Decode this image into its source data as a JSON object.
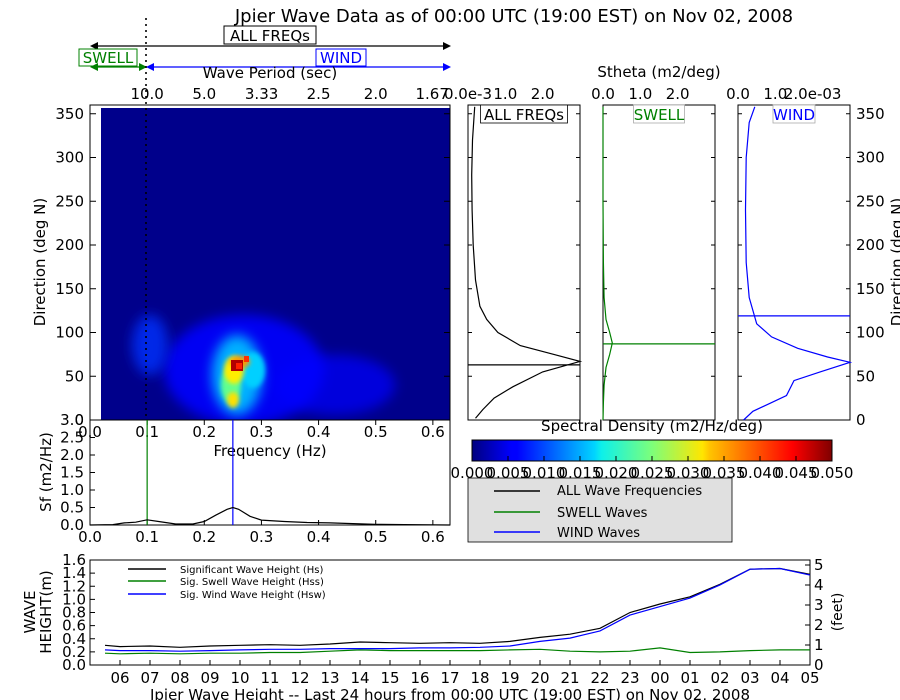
{
  "title": "Jpier Wave Data as of 00:00 UTC (19:00 EST) on Nov 02, 2008",
  "band_labels": {
    "all": "ALL FREQs",
    "wind": "WIND",
    "swell": "SWELL"
  },
  "colors": {
    "all": "#000000",
    "swell": "#008000",
    "wind": "#0000ff",
    "field": "#00008b"
  },
  "chart_data": [
    {
      "id": "directional-spectrum",
      "type": "heatmap",
      "xlabel": "Frequency (Hz)",
      "ylabel": "Direction (deg N)",
      "top_axis_label": "Wave Period (sec)",
      "top_tick_labels": [
        "10.0",
        "5.0",
        "3.33",
        "2.5",
        "2.0",
        "1.67"
      ],
      "xlim": [
        0.0,
        0.63
      ],
      "ylim": [
        0,
        360
      ],
      "xticks": [
        "0.0",
        "0.1",
        "0.2",
        "0.3",
        "0.4",
        "0.5",
        "0.6"
      ],
      "yticks": [
        "0",
        "50",
        "100",
        "150",
        "200",
        "250",
        "300",
        "350"
      ],
      "hotspots": [
        {
          "f": 0.255,
          "d": 62,
          "value": 0.05
        },
        {
          "f": 0.25,
          "d": 45,
          "value": 0.032
        },
        {
          "f": 0.27,
          "d": 68,
          "value": 0.022
        },
        {
          "f": 0.24,
          "d": 28,
          "value": 0.018
        },
        {
          "f": 0.1,
          "d": 90,
          "value": 0.006
        }
      ],
      "swell_cutoff_hz": 0.1,
      "peak_frequency_hz": 0.25
    },
    {
      "id": "stheta-all",
      "type": "line",
      "title": "ALL FREQs",
      "xtick_labels": [
        "0.0e-3",
        "1.0",
        "2.0"
      ],
      "xlim": [
        0,
        3.0
      ],
      "ylim": [
        0,
        360
      ],
      "peak_direction_deg": 63,
      "x": [
        0.18,
        0.12,
        0.1,
        0.11,
        0.14,
        0.2,
        0.32,
        0.5,
        0.8,
        1.4,
        2.3,
        3.0,
        2.0,
        1.2,
        0.7,
        0.4,
        0.2
      ],
      "y": [
        358,
        320,
        280,
        240,
        200,
        160,
        130,
        115,
        100,
        85,
        75,
        67,
        55,
        38,
        25,
        12,
        2
      ]
    },
    {
      "id": "stheta-swell",
      "type": "line",
      "title": "SWELL",
      "xtick_labels": [
        "0.0",
        "1.0",
        "2.0"
      ],
      "xlim": [
        0,
        3.0
      ],
      "ylim": [
        0,
        360
      ],
      "peak_direction_deg": 87,
      "x": [
        0.0,
        0.0,
        0.01,
        0.03,
        0.08,
        0.18,
        0.25,
        0.18,
        0.08,
        0.03,
        0.01,
        0.0
      ],
      "y": [
        358,
        250,
        180,
        140,
        115,
        100,
        88,
        75,
        60,
        40,
        20,
        0
      ]
    },
    {
      "id": "stheta-wind",
      "type": "line",
      "title": "WIND",
      "xtick_labels": [
        "0.0",
        "1.0",
        "2.0e-03"
      ],
      "xlim": [
        0,
        3.0
      ],
      "ylim": [
        0,
        360
      ],
      "peak_direction_deg": 119,
      "x": [
        0.45,
        0.3,
        0.22,
        0.2,
        0.22,
        0.3,
        0.5,
        0.9,
        1.6,
        2.4,
        3.0,
        2.2,
        1.5,
        1.3,
        0.8,
        0.4,
        0.15
      ],
      "y": [
        358,
        340,
        300,
        240,
        180,
        140,
        110,
        95,
        82,
        72,
        66,
        55,
        45,
        28,
        18,
        10,
        0
      ]
    },
    {
      "id": "frequency-spectrum",
      "type": "line",
      "ylabel": "Sf (m2/Hz)",
      "xlim": [
        0.0,
        0.63
      ],
      "ylim": [
        0.0,
        3.0
      ],
      "xticks": [
        "0.0",
        "0.1",
        "0.2",
        "0.3",
        "0.4",
        "0.5",
        "0.6"
      ],
      "yticks": [
        "0.0",
        "0.5",
        "1.0",
        "1.5",
        "2.0",
        "2.5",
        "3.0"
      ],
      "x": [
        0.0,
        0.04,
        0.06,
        0.08,
        0.1,
        0.12,
        0.15,
        0.18,
        0.2,
        0.22,
        0.24,
        0.25,
        0.26,
        0.28,
        0.3,
        0.34,
        0.38,
        0.42,
        0.46,
        0.5,
        0.55,
        0.63
      ],
      "y": [
        0.0,
        0.01,
        0.06,
        0.08,
        0.15,
        0.1,
        0.03,
        0.03,
        0.1,
        0.28,
        0.45,
        0.5,
        0.45,
        0.25,
        0.14,
        0.1,
        0.07,
        0.06,
        0.04,
        0.02,
        0.01,
        0.0
      ],
      "swell_cutoff_hz": 0.1,
      "peak_frequency_hz": 0.25
    },
    {
      "id": "colorbar",
      "type": "heatmap",
      "title": "Spectral Density (m2/Hz/deg)",
      "range": [
        0.0,
        0.05
      ],
      "tick_labels": [
        "0.000",
        "0.005",
        "0.010",
        "0.015",
        "0.020",
        "0.025",
        "0.030",
        "0.035",
        "0.040",
        "0.045",
        "0.050"
      ]
    },
    {
      "id": "wave-height-history",
      "type": "line",
      "ylabel": "WAVE HEIGHT(m)",
      "right_ylabel": "(feet)",
      "xlabel": "Jpier Wave Height -- Last 24 hours from 00:00 UTC (19:00 EST) on Nov 02, 2008",
      "categories": [
        "06",
        "07",
        "08",
        "09",
        "10",
        "11",
        "12",
        "13",
        "14",
        "15",
        "16",
        "17",
        "18",
        "19",
        "20",
        "21",
        "22",
        "23",
        "00",
        "01",
        "02",
        "03",
        "04",
        "05"
      ],
      "ylim": [
        0.0,
        1.6
      ],
      "yticks": [
        "0.0",
        "0.2",
        "0.4",
        "0.6",
        "0.8",
        "1.0",
        "1.2",
        "1.4",
        "1.6"
      ],
      "right_yticks": [
        "0",
        "1",
        "2",
        "3",
        "4",
        "5"
      ],
      "legend": [
        "Significant Wave Height (Hs)",
        "Sig. Swell Wave Height (Hss)",
        "Sig. Wind Wave Height (Hsw)"
      ],
      "series": [
        {
          "name": "Significant Wave Height (Hs)",
          "color": "#000000",
          "x": [
            5.5,
            6,
            7,
            8,
            9,
            10,
            11,
            12,
            13,
            14,
            15,
            16,
            17,
            18,
            19,
            20,
            21,
            22,
            23,
            24,
            25,
            26,
            27,
            28,
            29
          ],
          "values": [
            0.3,
            0.28,
            0.29,
            0.27,
            0.29,
            0.3,
            0.31,
            0.3,
            0.32,
            0.35,
            0.34,
            0.33,
            0.34,
            0.33,
            0.36,
            0.42,
            0.47,
            0.56,
            0.8,
            0.93,
            1.04,
            1.23,
            1.46,
            1.47,
            1.38
          ]
        },
        {
          "name": "Sig. Swell Wave Height (Hss)",
          "color": "#008000",
          "x": [
            5.5,
            6,
            7,
            8,
            9,
            10,
            11,
            12,
            13,
            14,
            15,
            16,
            17,
            18,
            19,
            20,
            21,
            22,
            23,
            24,
            25,
            26,
            27,
            28,
            29
          ],
          "values": [
            0.18,
            0.17,
            0.18,
            0.17,
            0.18,
            0.18,
            0.19,
            0.19,
            0.21,
            0.23,
            0.22,
            0.22,
            0.22,
            0.22,
            0.23,
            0.24,
            0.21,
            0.2,
            0.21,
            0.26,
            0.19,
            0.2,
            0.22,
            0.23,
            0.23
          ]
        },
        {
          "name": "Sig. Wind Wave Height (Hsw)",
          "color": "#0000ff",
          "x": [
            5.5,
            6,
            7,
            8,
            9,
            10,
            11,
            12,
            13,
            14,
            15,
            16,
            17,
            18,
            19,
            20,
            21,
            22,
            23,
            24,
            25,
            26,
            27,
            28,
            29
          ],
          "values": [
            0.23,
            0.22,
            0.22,
            0.21,
            0.22,
            0.23,
            0.24,
            0.24,
            0.25,
            0.25,
            0.25,
            0.26,
            0.26,
            0.27,
            0.29,
            0.36,
            0.41,
            0.52,
            0.76,
            0.89,
            1.02,
            1.22,
            1.46,
            1.47,
            1.37
          ]
        }
      ]
    }
  ],
  "legend_box": [
    "ALL Wave Frequencies",
    "SWELL Waves",
    "WIND Waves"
  ]
}
